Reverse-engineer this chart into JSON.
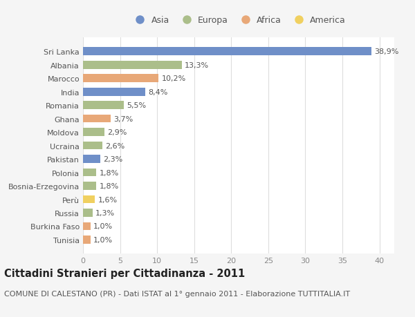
{
  "categories": [
    "Sri Lanka",
    "Albania",
    "Marocco",
    "India",
    "Romania",
    "Ghana",
    "Moldova",
    "Ucraina",
    "Pakistan",
    "Polonia",
    "Bosnia-Erzegovina",
    "Perù",
    "Russia",
    "Burkina Faso",
    "Tunisia"
  ],
  "values": [
    38.9,
    13.3,
    10.2,
    8.4,
    5.5,
    3.7,
    2.9,
    2.6,
    2.3,
    1.8,
    1.8,
    1.6,
    1.3,
    1.0,
    1.0
  ],
  "labels": [
    "38,9%",
    "13,3%",
    "10,2%",
    "8,4%",
    "5,5%",
    "3,7%",
    "2,9%",
    "2,6%",
    "2,3%",
    "1,8%",
    "1,8%",
    "1,6%",
    "1,3%",
    "1,0%",
    "1,0%"
  ],
  "continents": [
    "Asia",
    "Europa",
    "Africa",
    "Asia",
    "Europa",
    "Africa",
    "Europa",
    "Europa",
    "Asia",
    "Europa",
    "Europa",
    "America",
    "Europa",
    "Africa",
    "Africa"
  ],
  "colors": {
    "Asia": "#6F8FC8",
    "Europa": "#ABBE8A",
    "Africa": "#E8A878",
    "America": "#F0D060"
  },
  "xlim": [
    0,
    42
  ],
  "xticks": [
    0,
    5,
    10,
    15,
    20,
    25,
    30,
    35,
    40
  ],
  "title": "Cittadini Stranieri per Cittadinanza - 2011",
  "subtitle": "COMUNE DI CALESTANO (PR) - Dati ISTAT al 1° gennaio 2011 - Elaborazione TUTTITALIA.IT",
  "background_color": "#F5F5F5",
  "plot_background": "#FFFFFF",
  "bar_height": 0.6,
  "label_fontsize": 8,
  "title_fontsize": 10.5,
  "subtitle_fontsize": 8,
  "tick_fontsize": 8,
  "legend_fontsize": 9
}
